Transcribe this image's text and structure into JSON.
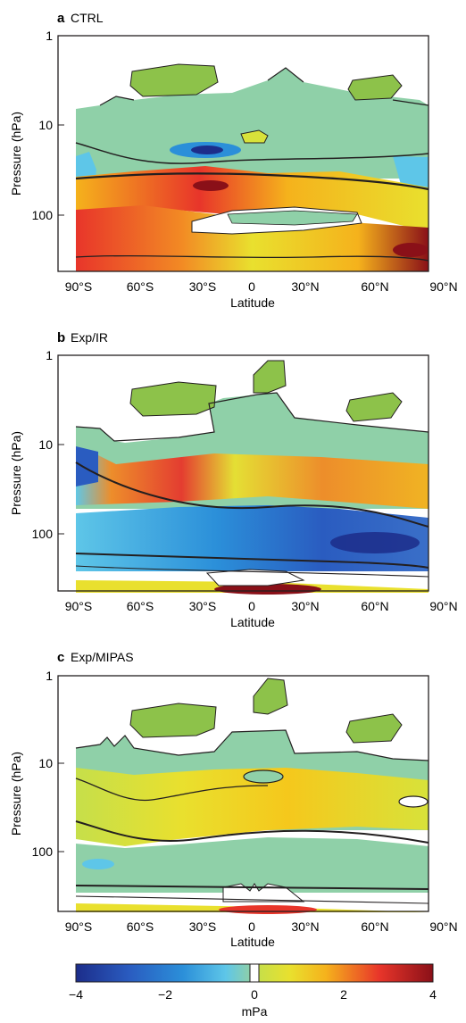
{
  "colors": {
    "neg_strong": "#1c2d8a",
    "neg_mid": "#2b8fd9",
    "neg_light": "#5ec6e8",
    "near_zero": "#8fd0a8",
    "pos_light": "#d8e23a",
    "pos_mid": "#f5b21c",
    "pos_strong": "#e8352a",
    "pos_max": "#8a1018",
    "contour": "#231f20",
    "blob_green": "#8dc24a"
  },
  "chart_data": [
    {
      "type": "contour",
      "panel_letter": "a",
      "title": "CTRL",
      "xlabel": "Latitude",
      "ylabel": "Pressure (hPa)",
      "x_ticks": [
        "90°S",
        "60°S",
        "30°S",
        "0",
        "30°N",
        "60°N",
        "90°N"
      ],
      "y_ticks": [
        "1",
        "10",
        "100"
      ],
      "y_scale": "log",
      "ylim": [
        1,
        250
      ],
      "xlim": [
        -90,
        90
      ],
      "regions": [
        {
          "lat": [
            -90,
            90
          ],
          "p": [
            5,
            20
          ],
          "value": 0.3
        },
        {
          "lat": [
            -40,
            10
          ],
          "p": [
            20,
            30
          ],
          "value": -1.5
        },
        {
          "lat": [
            -85,
            -70
          ],
          "p": [
            20,
            60
          ],
          "value": -2.0
        },
        {
          "lat": [
            -60,
            90
          ],
          "p": [
            30,
            70
          ],
          "value": 2.5
        },
        {
          "lat": [
            -90,
            -40
          ],
          "p": [
            70,
            200
          ],
          "value": 3.0
        },
        {
          "lat": [
            60,
            90
          ],
          "p": [
            150,
            250
          ],
          "value": 4.0
        }
      ]
    },
    {
      "type": "contour",
      "panel_letter": "b",
      "title": "Exp/IR",
      "xlabel": "Latitude",
      "ylabel": "Pressure (hPa)",
      "x_ticks": [
        "90°S",
        "60°S",
        "30°S",
        "0",
        "30°N",
        "60°N",
        "90°N"
      ],
      "y_ticks": [
        "1",
        "10",
        "100"
      ],
      "y_scale": "log",
      "ylim": [
        1,
        250
      ],
      "xlim": [
        -90,
        90
      ],
      "regions": [
        {
          "lat": [
            -60,
            -10
          ],
          "p": [
            25,
            60
          ],
          "value": 2.5
        },
        {
          "lat": [
            10,
            90
          ],
          "p": [
            20,
            60
          ],
          "value": 2.0
        },
        {
          "lat": [
            -90,
            90
          ],
          "p": [
            60,
            180
          ],
          "value": -2.0
        },
        {
          "lat": [
            30,
            80
          ],
          "p": [
            80,
            150
          ],
          "value": -3.0
        },
        {
          "lat": [
            -10,
            30
          ],
          "p": [
            200,
            250
          ],
          "value": 4.0
        }
      ]
    },
    {
      "type": "contour",
      "panel_letter": "c",
      "title": "Exp/MIPAS",
      "xlabel": "Latitude",
      "ylabel": "Pressure (hPa)",
      "x_ticks": [
        "90°S",
        "60°S",
        "30°S",
        "0",
        "30°N",
        "60°N",
        "90°N"
      ],
      "y_ticks": [
        "1",
        "10",
        "100"
      ],
      "y_scale": "log",
      "ylim": [
        1,
        250
      ],
      "xlim": [
        -90,
        90
      ],
      "regions": [
        {
          "lat": [
            -90,
            90
          ],
          "p": [
            15,
            70
          ],
          "value": 1.0
        },
        {
          "lat": [
            -90,
            90
          ],
          "p": [
            70,
            180
          ],
          "value": -0.8
        },
        {
          "lat": [
            -20,
            20
          ],
          "p": [
            200,
            250
          ],
          "value": 3.5
        }
      ]
    }
  ],
  "colorbar": {
    "ticks": [
      "−4",
      "−2",
      "0",
      "2",
      "4"
    ],
    "tick_values": [
      -4,
      -2,
      0,
      2,
      4
    ],
    "unit": "mPa",
    "range": [
      -4,
      4
    ]
  }
}
